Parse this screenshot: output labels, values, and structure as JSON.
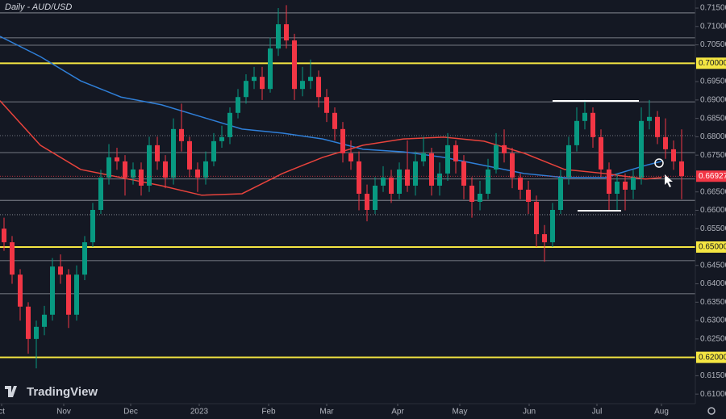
{
  "chart_data": {
    "type": "candlestick",
    "title": "Daily - AUD/USD",
    "watermark": "TradingView",
    "xlim": [
      -0.5,
      85.7
    ],
    "xticks": [
      {
        "value": -0.3,
        "label": "ct"
      },
      {
        "value": 7.4,
        "label": "Nov"
      },
      {
        "value": 15.7,
        "label": "Dec"
      },
      {
        "value": 24.2,
        "label": "2023"
      },
      {
        "value": 32.8,
        "label": "Feb"
      },
      {
        "value": 40.0,
        "label": "Mar"
      },
      {
        "value": 48.8,
        "label": "Apr"
      },
      {
        "value": 56.5,
        "label": "May"
      },
      {
        "value": 65.1,
        "label": "Jun"
      },
      {
        "value": 73.5,
        "label": "Jul"
      },
      {
        "value": 81.5,
        "label": "Aug"
      }
    ],
    "ylim": [
      0.6074,
      0.7172
    ],
    "yticks": [
      {
        "value": 0.715,
        "label": "0.71500"
      },
      {
        "value": 0.71,
        "label": "0.71000"
      },
      {
        "value": 0.705,
        "label": "0.70500"
      },
      {
        "value": 0.695,
        "label": "0.69500"
      },
      {
        "value": 0.69,
        "label": "0.69000"
      },
      {
        "value": 0.685,
        "label": "0.68500"
      },
      {
        "value": 0.68,
        "label": "0.68000"
      },
      {
        "value": 0.675,
        "label": "0.67500"
      },
      {
        "value": 0.665,
        "label": "0.66500"
      },
      {
        "value": 0.66,
        "label": "0.66000"
      },
      {
        "value": 0.655,
        "label": "0.65500"
      },
      {
        "value": 0.645,
        "label": "0.64500"
      },
      {
        "value": 0.64,
        "label": "0.64000"
      },
      {
        "value": 0.635,
        "label": "0.63500"
      },
      {
        "value": 0.63,
        "label": "0.63000"
      },
      {
        "value": 0.625,
        "label": "0.62500"
      },
      {
        "value": 0.615,
        "label": "0.61500"
      },
      {
        "value": 0.61,
        "label": "0.61000"
      }
    ],
    "up_color": "#089981",
    "down_color": "#f23645",
    "candles": {
      "open": [
        0.655,
        0.6513,
        0.6425,
        0.6338,
        0.625,
        0.6283,
        0.6316,
        0.6447,
        0.6425,
        0.6316,
        0.6425,
        0.6513,
        0.6601,
        0.6689,
        0.6744,
        0.6733,
        0.6689,
        0.6711,
        0.6667,
        0.6777,
        0.6733,
        0.6689,
        0.6821,
        0.6788,
        0.6711,
        0.6689,
        0.6733,
        0.6788,
        0.6799,
        0.6865,
        0.6908,
        0.6952,
        0.6963,
        0.693,
        0.704,
        0.7106,
        0.7062,
        0.693,
        0.6952,
        0.6963,
        0.6908,
        0.6865,
        0.6821,
        0.6755,
        0.6733,
        0.6645,
        0.6601,
        0.6667,
        0.6689,
        0.6645,
        0.6711,
        0.6667,
        0.6733,
        0.6755,
        0.6667,
        0.67,
        0.6777,
        0.6733,
        0.6667,
        0.6623,
        0.6645,
        0.6711,
        0.6777,
        0.6755,
        0.6689,
        0.6656,
        0.6623,
        0.6535,
        0.6513,
        0.6601,
        0.6689,
        0.6777,
        0.6843,
        0.6865,
        0.6799,
        0.6711,
        0.6645,
        0.6678,
        0.6656,
        0.6689,
        0.6843,
        0.6854,
        0.6799,
        0.6766,
        0.6733
      ],
      "high": [
        0.658,
        0.653,
        0.644,
        0.635,
        0.63,
        0.634,
        0.647,
        0.648,
        0.644,
        0.645,
        0.653,
        0.662,
        0.671,
        0.678,
        0.677,
        0.675,
        0.673,
        0.673,
        0.68,
        0.68,
        0.675,
        0.685,
        0.689,
        0.68,
        0.673,
        0.676,
        0.681,
        0.683,
        0.688,
        0.693,
        0.697,
        0.699,
        0.699,
        0.707,
        0.715,
        0.7158,
        0.708,
        0.699,
        0.701,
        0.698,
        0.693,
        0.688,
        0.684,
        0.679,
        0.676,
        0.667,
        0.669,
        0.672,
        0.671,
        0.673,
        0.679,
        0.676,
        0.68,
        0.677,
        0.673,
        0.681,
        0.679,
        0.675,
        0.669,
        0.668,
        0.674,
        0.681,
        0.682,
        0.677,
        0.67,
        0.668,
        0.664,
        0.656,
        0.662,
        0.671,
        0.68,
        0.688,
        0.69,
        0.688,
        0.682,
        0.673,
        0.67,
        0.67,
        0.671,
        0.688,
        0.69,
        0.687,
        0.685,
        0.679,
        0.682
      ],
      "low": [
        0.649,
        0.64,
        0.63,
        0.621,
        0.617,
        0.626,
        0.63,
        0.64,
        0.628,
        0.63,
        0.641,
        0.65,
        0.659,
        0.667,
        0.671,
        0.664,
        0.667,
        0.664,
        0.665,
        0.671,
        0.666,
        0.667,
        0.676,
        0.669,
        0.665,
        0.667,
        0.672,
        0.677,
        0.678,
        0.685,
        0.689,
        0.693,
        0.69,
        0.692,
        0.702,
        0.704,
        0.69,
        0.691,
        0.693,
        0.688,
        0.684,
        0.679,
        0.673,
        0.671,
        0.66,
        0.657,
        0.659,
        0.665,
        0.662,
        0.663,
        0.665,
        0.664,
        0.672,
        0.664,
        0.664,
        0.668,
        0.67,
        0.663,
        0.658,
        0.66,
        0.663,
        0.67,
        0.673,
        0.666,
        0.663,
        0.659,
        0.65,
        0.646,
        0.65,
        0.659,
        0.667,
        0.676,
        0.682,
        0.677,
        0.669,
        0.66,
        0.66,
        0.66,
        0.663,
        0.667,
        0.682,
        0.678,
        0.674,
        0.671,
        0.663
      ],
      "close": [
        0.6513,
        0.6425,
        0.6338,
        0.625,
        0.6283,
        0.6316,
        0.6447,
        0.6425,
        0.6316,
        0.6425,
        0.6513,
        0.6601,
        0.6689,
        0.6744,
        0.6733,
        0.6689,
        0.6711,
        0.6667,
        0.6777,
        0.6733,
        0.6689,
        0.6821,
        0.6788,
        0.6711,
        0.6689,
        0.6733,
        0.6788,
        0.6799,
        0.6865,
        0.6908,
        0.6952,
        0.6963,
        0.693,
        0.704,
        0.7106,
        0.7062,
        0.693,
        0.6952,
        0.6963,
        0.6908,
        0.6865,
        0.6821,
        0.6755,
        0.6733,
        0.6645,
        0.6601,
        0.6667,
        0.6689,
        0.6645,
        0.6711,
        0.6667,
        0.6733,
        0.6755,
        0.6667,
        0.67,
        0.6777,
        0.6733,
        0.6667,
        0.6623,
        0.6645,
        0.6711,
        0.6777,
        0.6755,
        0.6689,
        0.6656,
        0.6623,
        0.6535,
        0.6513,
        0.6601,
        0.6689,
        0.6777,
        0.6843,
        0.6865,
        0.6799,
        0.6711,
        0.6645,
        0.6678,
        0.6656,
        0.6689,
        0.6843,
        0.6854,
        0.6799,
        0.6766,
        0.6733,
        0.6693
      ]
    },
    "series": [
      {
        "color": "#2f7fd8",
        "x": [
          -0.5,
          4.5,
          9.5,
          14.5,
          19.5,
          24.5,
          29.5,
          34.5,
          39.5,
          44.5,
          49.5,
          54.5,
          59.5,
          64.5,
          69.5,
          74.5,
          79.5,
          81.5
        ],
        "values": [
          0.7073,
          0.7018,
          0.6952,
          0.6908,
          0.6887,
          0.6854,
          0.6821,
          0.681,
          0.6794,
          0.6766,
          0.6759,
          0.6744,
          0.6722,
          0.67,
          0.6689,
          0.6689,
          0.6722,
          0.6733
        ]
      },
      {
        "color": "#e8433c",
        "x": [
          -0.5,
          4.5,
          9.5,
          14.5,
          19.5,
          24.5,
          29.5,
          34.5,
          39.5,
          44.5,
          49.5,
          54.5,
          59.5,
          64.5,
          69.5,
          74.5,
          79.5,
          81.5
        ],
        "values": [
          0.6898,
          0.6777,
          0.6711,
          0.6689,
          0.6667,
          0.6641,
          0.6645,
          0.67,
          0.6744,
          0.6777,
          0.6794,
          0.6799,
          0.6788,
          0.6755,
          0.6711,
          0.67,
          0.6685,
          0.6689
        ]
      }
    ],
    "levels": [
      {
        "value": 0.7,
        "label": "0.70000"
      },
      {
        "value": 0.65,
        "label": "0.65000"
      },
      {
        "value": 0.62,
        "label": "0.62000"
      }
    ],
    "level_color": "#f5e642",
    "support_lines": [
      0.7137,
      0.7069,
      0.7049,
      0.6895,
      0.6803,
      0.6757,
      0.6685,
      0.6627,
      0.6588,
      0.6463,
      0.6373
    ],
    "last_price": {
      "value": 0.66927,
      "label": "0.66927"
    }
  }
}
